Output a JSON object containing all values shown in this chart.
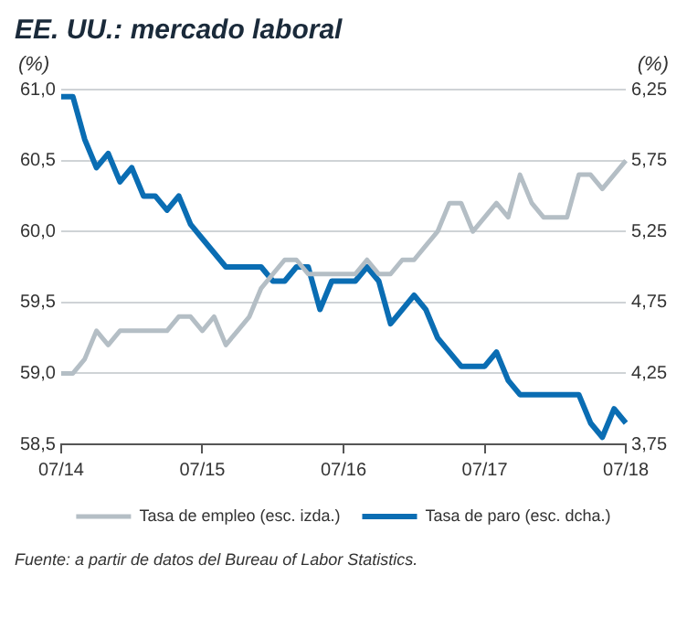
{
  "chart_data": {
    "type": "line",
    "title": "EE. UU.: mercado laboral",
    "ylabel": "(%)",
    "y2label": "(%)",
    "categories": [
      "07/14",
      null,
      null,
      null,
      null,
      null,
      null,
      null,
      null,
      null,
      null,
      null,
      "07/15",
      null,
      null,
      null,
      null,
      null,
      null,
      null,
      null,
      null,
      null,
      null,
      "07/16",
      null,
      null,
      null,
      null,
      null,
      null,
      null,
      null,
      null,
      null,
      null,
      "07/17",
      null,
      null,
      null,
      null,
      null,
      null,
      null,
      null,
      null,
      null,
      null,
      "07/18"
    ],
    "series": [
      {
        "name": "Tasa de empleo (esc. izda.)",
        "color": "#b4bec5",
        "values": [
          59.0,
          59.0,
          59.1,
          59.3,
          59.2,
          59.3,
          59.3,
          59.3,
          59.3,
          59.3,
          59.4,
          59.4,
          59.3,
          59.4,
          59.2,
          59.3,
          59.4,
          59.6,
          59.7,
          59.8,
          59.8,
          59.7,
          59.7,
          59.7,
          59.7,
          59.7,
          59.8,
          59.7,
          59.7,
          59.8,
          59.8,
          59.9,
          60.0,
          60.2,
          60.2,
          60.0,
          60.1,
          60.2,
          60.1,
          60.4,
          60.2,
          60.1,
          60.1,
          60.1,
          60.4,
          60.4,
          60.3,
          60.4,
          60.5
        ]
      },
      {
        "name": "Tasa de paro (esc. dcha.)",
        "color": "#0a6db3",
        "axis": "y2",
        "values": [
          6.2,
          6.2,
          5.9,
          5.7,
          5.8,
          5.6,
          5.7,
          5.5,
          5.5,
          5.4,
          5.5,
          5.3,
          5.2,
          5.1,
          5.0,
          5.0,
          5.0,
          5.0,
          4.9,
          4.9,
          5.0,
          5.0,
          4.7,
          4.9,
          4.9,
          4.9,
          5.0,
          4.9,
          4.6,
          4.7,
          4.8,
          4.7,
          4.5,
          4.4,
          4.3,
          4.3,
          4.3,
          4.4,
          4.2,
          4.1,
          4.1,
          4.1,
          4.1,
          4.1,
          4.1,
          3.9,
          3.8,
          4.0,
          3.9
        ]
      }
    ],
    "ylim": [
      58.5,
      61.0
    ],
    "yticks": [
      {
        "value": 58.5,
        "label": "58,5"
      },
      {
        "value": 59.0,
        "label": "59,0"
      },
      {
        "value": 59.5,
        "label": "59,5"
      },
      {
        "value": 60.0,
        "label": "60,0"
      },
      {
        "value": 60.5,
        "label": "60,5"
      },
      {
        "value": 61.0,
        "label": "61,0"
      }
    ],
    "y2lim": [
      3.75,
      6.25
    ],
    "y2ticks": [
      {
        "value": 3.75,
        "label": "3,75"
      },
      {
        "value": 4.25,
        "label": "4,25"
      },
      {
        "value": 4.75,
        "label": "4,75"
      },
      {
        "value": 5.25,
        "label": "5,25"
      },
      {
        "value": 5.75,
        "label": "5,75"
      },
      {
        "value": 6.25,
        "label": "6,25"
      }
    ],
    "grid": "y",
    "legend": "bottom",
    "marker": "none",
    "line_style": "solid",
    "annotations": [
      "Fuente: a partir de datos del Bureau of Labor Statistics."
    ]
  }
}
